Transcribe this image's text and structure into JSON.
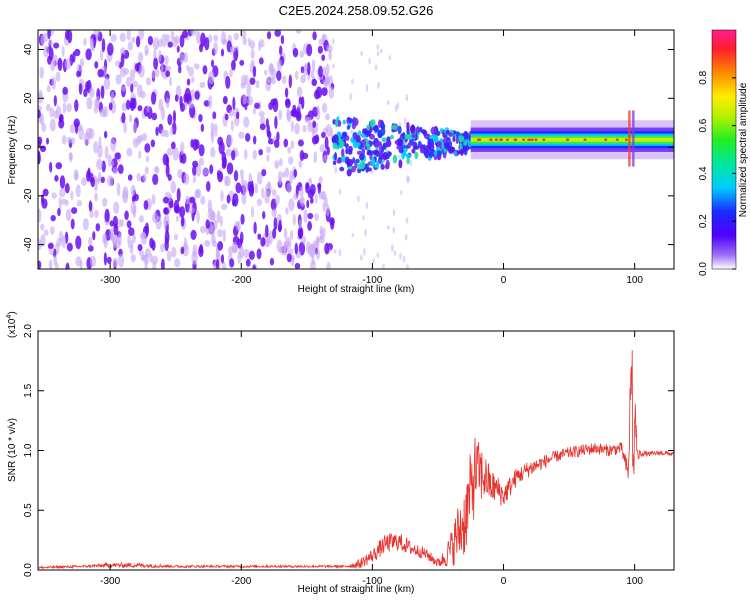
{
  "title": "C2E5.2024.258.09.52.G26",
  "colors": {
    "line": "#e8322c",
    "axis": "#000000",
    "blob_main": "#6a0ff0",
    "blob_light": "#c7a5f5"
  },
  "chart_data": [
    {
      "type": "heatmap",
      "xlabel": "Height of straight line (km)",
      "ylabel": "Frequency (Hz)",
      "xlim": [
        -355,
        130
      ],
      "ylim": [
        -50,
        48
      ],
      "xticks": [
        -300,
        -200,
        -100,
        0,
        100
      ],
      "yticks": [
        -40,
        -20,
        0,
        20,
        40
      ],
      "xtick_labels": [
        "-300",
        "-200",
        "-100",
        "0",
        "100"
      ],
      "ytick_labels": [
        "-40",
        "-20",
        "0",
        "20",
        "40"
      ],
      "colorbar": {
        "label": "Normalized spectral amplitude",
        "range": [
          0,
          1
        ],
        "ticks": [
          0.0,
          0.2,
          0.4,
          0.6,
          0.8
        ],
        "tick_labels": [
          "0.0",
          "0.2",
          "0.4",
          "0.6",
          "0.8"
        ]
      },
      "regions": [
        {
          "name": "broadband noise",
          "x": [
            -355,
            -130
          ],
          "freq": [
            -50,
            48
          ],
          "amplitude": 0.2
        },
        {
          "name": "transition",
          "x": [
            -130,
            -25
          ],
          "freq": [
            -12,
            12
          ],
          "amplitude": 0.35
        },
        {
          "name": "tone",
          "x": [
            -25,
            130
          ],
          "freq": [
            1,
            5
          ],
          "center_freq": 3,
          "amplitude": 0.75
        }
      ]
    },
    {
      "type": "line",
      "xlabel": "Height of straight line (km)",
      "ylabel": "SNR (10 * v/v)",
      "y_multiplier": "(x10",
      "y_multiplier_exp": "4",
      "y_multiplier_close": ")",
      "xlim": [
        -355,
        130
      ],
      "ylim": [
        0,
        2.0
      ],
      "xticks": [
        -300,
        -200,
        -100,
        0,
        100
      ],
      "yticks": [
        0.0,
        0.5,
        1.0,
        1.5,
        2.0
      ],
      "xtick_labels": [
        "-300",
        "-200",
        "-100",
        "0",
        "100"
      ],
      "ytick_labels": [
        "0.0",
        "0.5",
        "1.0",
        "1.5",
        "2.0"
      ],
      "series": [
        {
          "x": [
            -355,
            -320,
            -300,
            -280,
            -250,
            -200,
            -150,
            -120,
            -110,
            -100,
            -90,
            -80,
            -70,
            -60,
            -50,
            -45,
            -40,
            -35,
            -30,
            -25,
            -22,
            -20,
            -17,
            -15,
            -12,
            -10,
            -5,
            0,
            10,
            20,
            30,
            40,
            50,
            60,
            70,
            80,
            90,
            95,
            97,
            98,
            99,
            100,
            102,
            105,
            110,
            120,
            130
          ],
          "y": [
            0.02,
            0.03,
            0.04,
            0.04,
            0.03,
            0.03,
            0.03,
            0.03,
            0.05,
            0.12,
            0.22,
            0.24,
            0.18,
            0.14,
            0.06,
            0.1,
            0.18,
            0.3,
            0.4,
            0.65,
            0.8,
            0.85,
            0.8,
            0.78,
            0.75,
            0.7,
            0.68,
            0.62,
            0.78,
            0.85,
            0.9,
            0.95,
            0.98,
            1.0,
            1.02,
            1.0,
            1.02,
            0.8,
            1.5,
            1.8,
            0.5,
            1.4,
            0.95,
            0.98,
            0.97,
            0.98,
            0.97
          ],
          "noise": [
            0.01,
            0.01,
            0.02,
            0.02,
            0.01,
            0.01,
            0.01,
            0.01,
            0.04,
            0.06,
            0.08,
            0.08,
            0.06,
            0.05,
            0.04,
            0.08,
            0.15,
            0.25,
            0.3,
            0.35,
            0.35,
            0.25,
            0.25,
            0.2,
            0.18,
            0.15,
            0.12,
            0.1,
            0.08,
            0.07,
            0.06,
            0.05,
            0.05,
            0.05,
            0.05,
            0.05,
            0.05,
            0.1,
            0.4,
            0.4,
            0.4,
            0.3,
            0.05,
            0.03,
            0.02,
            0.02,
            0.02
          ]
        }
      ]
    }
  ]
}
